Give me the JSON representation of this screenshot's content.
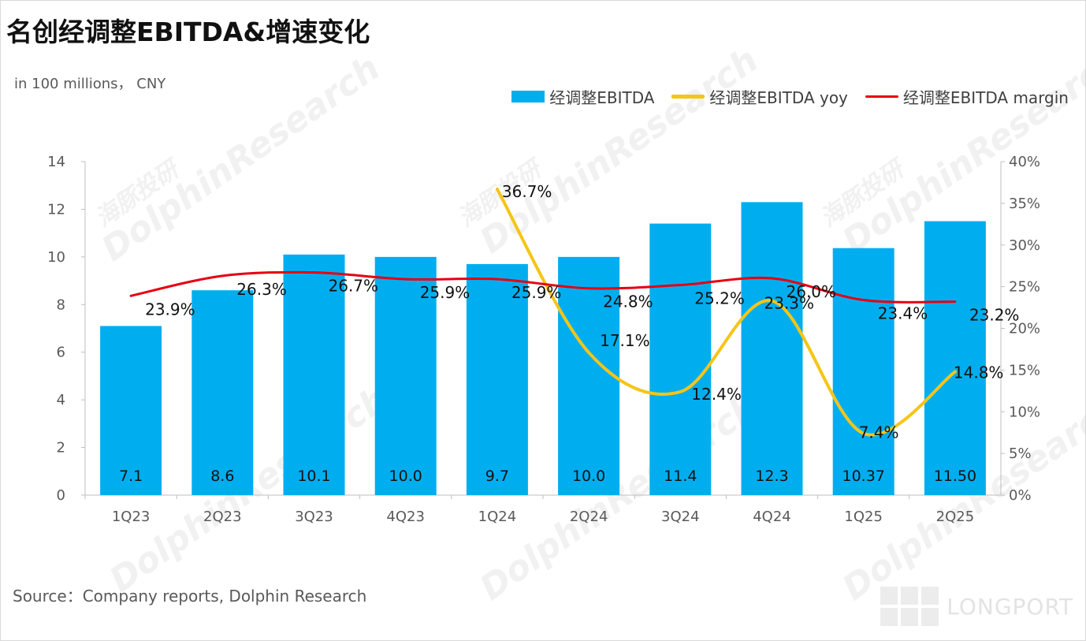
{
  "header": {
    "title": "名创经调整EBITDA&增速变化",
    "unit": "in 100 millions， CNY"
  },
  "footer": {
    "source": "Source：Company reports, Dolphin Research",
    "logo_text": "LONGPORT"
  },
  "watermark": {
    "cn": "海豚投研",
    "en": "DolphinResearch"
  },
  "colors": {
    "bar": "#00aeef",
    "yoy": "#f5c518",
    "margin": "#e60012",
    "axis": "#bfbfbf",
    "tick_text": "#595959"
  },
  "legend": {
    "bar": "经调整EBITDA",
    "yoy": "经调整EBITDA yoy",
    "margin": "经调整EBITDA margin"
  },
  "chart_data": {
    "type": "bar",
    "title": "名创经调整EBITDA&增速变化",
    "categories": [
      "1Q23",
      "2Q23",
      "3Q23",
      "4Q23",
      "1Q24",
      "2Q24",
      "3Q24",
      "4Q24",
      "1Q25",
      "2Q25"
    ],
    "y_left": {
      "min": 0,
      "max": 14,
      "ticks": [
        0,
        2,
        4,
        6,
        8,
        10,
        12,
        14
      ]
    },
    "y_right": {
      "min": 0,
      "max": 40,
      "ticks": [
        "0%",
        "5%",
        "10%",
        "15%",
        "20%",
        "25%",
        "30%",
        "35%",
        "40%"
      ]
    },
    "series": [
      {
        "name": "经调整EBITDA",
        "type": "bar",
        "axis": "left",
        "values": [
          7.1,
          8.6,
          10.1,
          10.0,
          9.7,
          10.0,
          11.4,
          12.3,
          10.37,
          11.5
        ],
        "labels": [
          "7.1",
          "8.6",
          "10.1",
          "10.0",
          "9.7",
          "10.0",
          "11.4",
          "12.3",
          "10.37",
          "11.50"
        ]
      },
      {
        "name": "经调整EBITDA yoy",
        "type": "line",
        "axis": "right",
        "values": [
          null,
          null,
          null,
          null,
          36.7,
          17.1,
          12.4,
          23.3,
          7.4,
          14.8
        ],
        "labels": [
          null,
          null,
          null,
          null,
          "36.7%",
          "17.1%",
          "12.4%",
          "23.3%",
          "7.4%",
          "14.8%"
        ]
      },
      {
        "name": "经调整EBITDA margin",
        "type": "line",
        "axis": "right",
        "values": [
          23.9,
          26.3,
          26.7,
          25.9,
          25.9,
          24.8,
          25.2,
          26.0,
          23.4,
          23.2
        ],
        "labels": [
          "23.9%",
          "26.3%",
          "26.7%",
          "25.9%",
          "25.9%",
          "24.8%",
          "25.2%",
          "26.0%",
          "23.4%",
          "23.2%"
        ]
      }
    ]
  }
}
